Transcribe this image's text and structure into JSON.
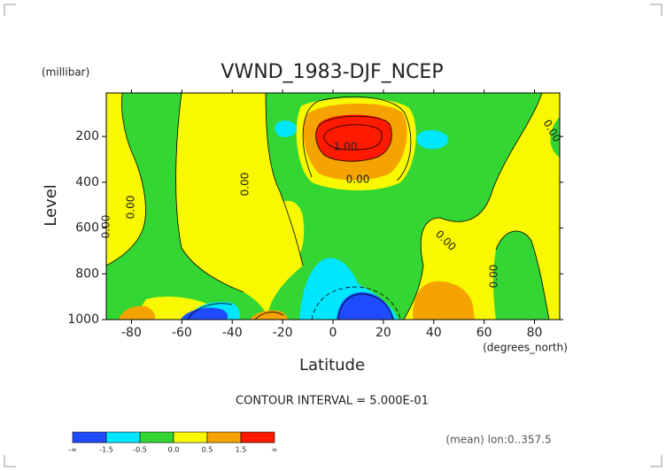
{
  "chart_data": {
    "type": "contour",
    "title": "VWND_1983-DJF_NCEP",
    "y_unit": "(millibar)",
    "y_label": "Level",
    "x_label": "Latitude",
    "x_unit": "(degrees_north)",
    "xlim": [
      -90,
      90
    ],
    "xticks": [
      -80,
      -60,
      -40,
      -20,
      0,
      20,
      40,
      60,
      80
    ],
    "ylim": [
      1000,
      10
    ],
    "yticks": [
      200,
      400,
      600,
      800,
      1000
    ],
    "contour_labels": [
      "0.00",
      "0.00",
      "0.00",
      "1.00",
      "0.00",
      "0.00",
      "0.00",
      "0.00"
    ],
    "contour_interval": "CONTOUR INTERVAL = 5.000E-01",
    "colorbar": {
      "colors": [
        "#1f4bff",
        "#00e6ff",
        "#33d633",
        "#f8f800",
        "#f5a300",
        "#ff1a00"
      ],
      "labels": [
        "-∞",
        "-1.5",
        "-0.5",
        "0.0",
        "0.5",
        "1.5",
        "∞"
      ]
    },
    "footer": "(mean) lon:0..357.5"
  }
}
